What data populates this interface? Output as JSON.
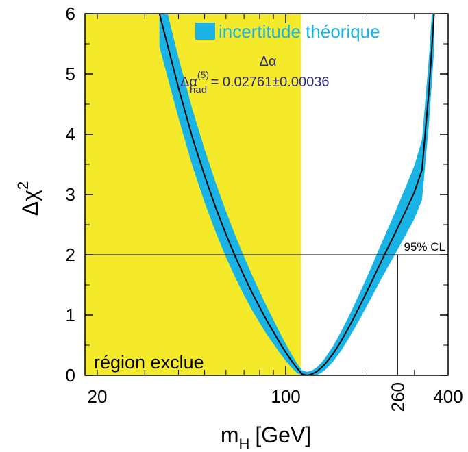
{
  "chart_data": {
    "type": "line",
    "xlabel": "m",
    "xlabel_sub": "H",
    "xlabel_unit": "[GeV]",
    "ylabel": "Δχ",
    "ylabel_sup": "2",
    "x_scale": "log",
    "xlim": [
      18,
      400
    ],
    "ylim": [
      0,
      6
    ],
    "x_ticks": [
      {
        "value": 20,
        "label": "20",
        "rotated": false
      },
      {
        "value": 100,
        "label": "100",
        "rotated": false
      },
      {
        "value": 260,
        "label": "260",
        "rotated": true
      },
      {
        "value": 400,
        "label": "400",
        "rotated": false
      }
    ],
    "y_ticks": [
      {
        "value": 0,
        "label": "0"
      },
      {
        "value": 1,
        "label": "1"
      },
      {
        "value": 2,
        "label": "2"
      },
      {
        "value": 3,
        "label": "3"
      },
      {
        "value": 4,
        "label": "4"
      },
      {
        "value": 5,
        "label": "5"
      },
      {
        "value": 6,
        "label": "6"
      }
    ],
    "grid": false,
    "excluded_region": {
      "x_max": 114,
      "label": "région exclue",
      "color": "#f4ea2a"
    },
    "band": {
      "name": "incertitude théorique",
      "color": "#19b3e6"
    },
    "legend_position": "top-right",
    "annotation_delta_alpha": "Δα",
    "annotation_formula": {
      "prefix": "Δα",
      "sup": "(5)",
      "sub": "had",
      "equals": " = ",
      "value": "0.02761",
      "pm": "±0.00036"
    },
    "cl_line": {
      "y": 2,
      "x": 260,
      "label": "95% CL"
    },
    "series": [
      {
        "name": "",
        "x": [
          34.0,
          40.0,
          45.0,
          50.0,
          55.0,
          60.0,
          65.0,
          70.0,
          75.0,
          80.0,
          85.0,
          90.0,
          95.0,
          100.0,
          105.0,
          110.0,
          115.0,
          120.0,
          125.0,
          130.0,
          135.0,
          140.0,
          150.0,
          160.0,
          170.0,
          180.0,
          190.0,
          200.0,
          210.0,
          220.0,
          230.0,
          240.0,
          250.0,
          260.0,
          280.0,
          300.0,
          320.0,
          340.0,
          355.0
        ],
        "y": [
          6.0,
          4.77,
          3.95,
          3.31,
          2.78,
          2.34,
          1.97,
          1.65,
          1.37,
          1.13,
          0.91,
          0.72,
          0.54,
          0.38,
          0.24,
          0.12,
          0.02,
          0.0,
          0.02,
          0.06,
          0.12,
          0.19,
          0.36,
          0.56,
          0.77,
          0.98,
          1.19,
          1.39,
          1.59,
          1.78,
          1.96,
          2.13,
          2.29,
          2.45,
          2.75,
          3.04,
          3.41,
          4.75,
          6.0
        ]
      }
    ],
    "band_halfwidth": [
      0.55,
      0.5,
      0.47,
      0.44,
      0.41,
      0.38,
      0.35,
      0.32,
      0.29,
      0.26,
      0.23,
      0.2,
      0.17,
      0.14,
      0.11,
      0.08,
      0.06,
      0.06,
      0.06,
      0.07,
      0.08,
      0.1,
      0.13,
      0.16,
      0.18,
      0.2,
      0.22,
      0.24,
      0.26,
      0.28,
      0.3,
      0.32,
      0.34,
      0.36,
      0.4,
      0.44,
      0.5,
      0.55,
      0.6
    ]
  }
}
